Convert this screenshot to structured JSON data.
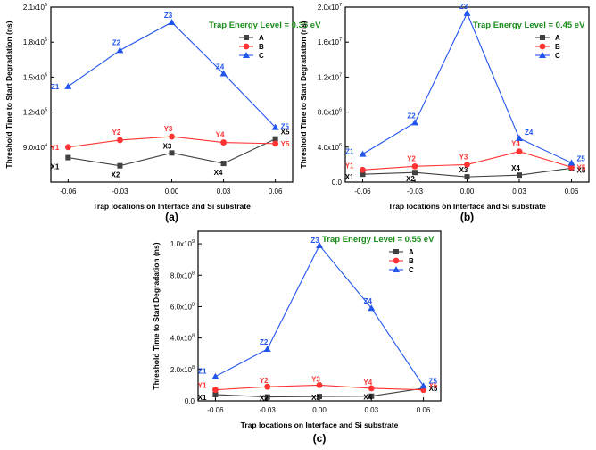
{
  "chart_data": [
    {
      "type": "line",
      "panel_label": "(a)",
      "annotation": "Trap Energy Level = 0.35 eV",
      "xlabel": "Trap locations on Interface and Si substrate",
      "ylabel": "Threshold Time to Start Degradation (ns)",
      "x": [
        -0.06,
        -0.03,
        0.0,
        0.03,
        0.06
      ],
      "x_tick_labels": [
        "-0.06",
        "-0.03",
        "0.00",
        "0.03",
        "0.06"
      ],
      "ylim": [
        60000,
        210000
      ],
      "y_ticks": [
        {
          "value": 90000,
          "mantissa": "9.0x10",
          "exp": "4"
        },
        {
          "value": 120000,
          "mantissa": "1.2x10",
          "exp": "5"
        },
        {
          "value": 150000,
          "mantissa": "1.5x10",
          "exp": "5"
        },
        {
          "value": 180000,
          "mantissa": "1.8x10",
          "exp": "5"
        },
        {
          "value": 210000,
          "mantissa": "2.1x10",
          "exp": "5"
        }
      ],
      "legend_position": "top-right",
      "series": [
        {
          "name": "A",
          "color": "#404040",
          "marker": "square",
          "values": [
            81000,
            74000,
            85000,
            76000,
            97000
          ],
          "point_labels": [
            "X1",
            "X2",
            "X3",
            "X4",
            "X5"
          ]
        },
        {
          "name": "B",
          "color": "#ff3333",
          "marker": "circle",
          "values": [
            90000,
            96000,
            99000,
            94000,
            93000
          ],
          "point_labels": [
            "Y1",
            "Y2",
            "Y3",
            "Y4",
            "Y5"
          ]
        },
        {
          "name": "C",
          "color": "#2255ee",
          "marker": "triangle",
          "values": [
            142000,
            173000,
            197000,
            153000,
            107000
          ],
          "point_labels": [
            "Z1",
            "Z2",
            "Z3",
            "Z4",
            "Z5"
          ]
        }
      ]
    },
    {
      "type": "line",
      "panel_label": "(b)",
      "annotation": "Trap Energy Level = 0.45 eV",
      "xlabel": "Trap locations on Interface and Si substrate",
      "ylabel": "Threshold Time to Start Degradation (ns)",
      "x": [
        -0.06,
        -0.03,
        0.0,
        0.03,
        0.06
      ],
      "x_tick_labels": [
        "-0.06",
        "-0.03",
        "0.00",
        "0.03",
        "0.06"
      ],
      "ylim": [
        0,
        20000000
      ],
      "y_ticks": [
        {
          "value": 0,
          "mantissa": "0.0",
          "exp": ""
        },
        {
          "value": 4000000,
          "mantissa": "4.0x10",
          "exp": "6"
        },
        {
          "value": 8000000,
          "mantissa": "8.0x10",
          "exp": "6"
        },
        {
          "value": 12000000,
          "mantissa": "1.2x10",
          "exp": "7"
        },
        {
          "value": 16000000,
          "mantissa": "1.6x10",
          "exp": "7"
        },
        {
          "value": 20000000,
          "mantissa": "2.0x10",
          "exp": "7"
        }
      ],
      "legend_position": "top-right",
      "series": [
        {
          "name": "A",
          "color": "#404040",
          "marker": "square",
          "values": [
            900000,
            1100000,
            600000,
            800000,
            1600000
          ],
          "point_labels": [
            "X1",
            "X2",
            "X3",
            "X4",
            "X5"
          ]
        },
        {
          "name": "B",
          "color": "#ff3333",
          "marker": "circle",
          "values": [
            1400000,
            1800000,
            2000000,
            3500000,
            1700000
          ],
          "point_labels": [
            "Y1",
            "Y2",
            "Y3",
            "Y4",
            "Y5"
          ]
        },
        {
          "name": "C",
          "color": "#2255ee",
          "marker": "triangle",
          "values": [
            3200000,
            6800000,
            19300000,
            5000000,
            2200000
          ],
          "point_labels": [
            "Z1",
            "Z2",
            "Z3",
            "Z4",
            "Z5"
          ]
        }
      ]
    },
    {
      "type": "line",
      "panel_label": "(c)",
      "annotation": "Trap Energy Level = 0.55 eV",
      "xlabel": "Trap locations on Interface and Si substrate",
      "ylabel": "Threshold Time to Start Degradation (ns)",
      "x": [
        -0.06,
        -0.03,
        0.0,
        0.03,
        0.06
      ],
      "x_tick_labels": [
        "-0.06",
        "-0.03",
        "0.00",
        "0.03",
        "0.06"
      ],
      "ylim": [
        0,
        1080000000
      ],
      "y_ticks": [
        {
          "value": 0,
          "mantissa": "0.0",
          "exp": ""
        },
        {
          "value": 200000000,
          "mantissa": "2.0x10",
          "exp": "8"
        },
        {
          "value": 400000000,
          "mantissa": "4.0x10",
          "exp": "8"
        },
        {
          "value": 600000000,
          "mantissa": "6.0x10",
          "exp": "8"
        },
        {
          "value": 800000000,
          "mantissa": "8.0x10",
          "exp": "8"
        },
        {
          "value": 1000000000,
          "mantissa": "1.0x10",
          "exp": "9"
        }
      ],
      "legend_position": "top-right",
      "series": [
        {
          "name": "A",
          "color": "#404040",
          "marker": "square",
          "values": [
            40000000,
            25000000,
            28000000,
            30000000,
            80000000
          ],
          "point_labels": [
            "X1",
            "X2",
            "X3",
            "X4",
            "X5"
          ]
        },
        {
          "name": "B",
          "color": "#ff3333",
          "marker": "circle",
          "values": [
            70000000,
            90000000,
            100000000,
            80000000,
            70000000
          ],
          "point_labels": [
            "Y1",
            "Y2",
            "Y3",
            "Y4",
            "Y5"
          ]
        },
        {
          "name": "C",
          "color": "#2255ee",
          "marker": "triangle",
          "values": [
            155000000,
            330000000,
            990000000,
            590000000,
            95000000
          ],
          "point_labels": [
            "Z1",
            "Z2",
            "Z3",
            "Z4",
            "Z5"
          ]
        }
      ]
    }
  ],
  "colors": {
    "annotation": "#1a8c1a",
    "axis": "#000000"
  }
}
